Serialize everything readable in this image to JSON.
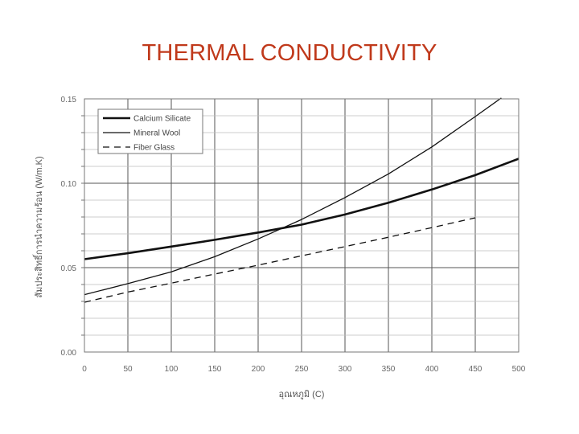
{
  "page": {
    "title": "THERMAL CONDUCTIVITY"
  },
  "chart_data": {
    "type": "line",
    "title": "THERMAL CONDUCTIVITY",
    "xlabel": "อุณหภูมิ (C)",
    "ylabel": "สัมประสิทธิ์การนำความร้อน (W/m.K)",
    "xlim": [
      0,
      500
    ],
    "ylim": [
      0.0,
      0.15
    ],
    "xticks": [
      0,
      50,
      100,
      150,
      200,
      250,
      300,
      350,
      400,
      450,
      500
    ],
    "yticks": [
      0.0,
      0.05,
      0.1,
      0.15
    ],
    "xtick_labels": [
      "0",
      "50",
      "100",
      "150",
      "200",
      "250",
      "300",
      "350",
      "400",
      "450",
      "500"
    ],
    "ytick_labels": [
      "0.00",
      "0.05",
      "0.10",
      "0.15"
    ],
    "grid": true,
    "legend_position": "top-left",
    "series": [
      {
        "name": "Calcium Silicate",
        "style": "solid-thick",
        "x": [
          0,
          50,
          100,
          150,
          200,
          250,
          300,
          350,
          400,
          450,
          500
        ],
        "y": [
          0.055,
          0.0585,
          0.0625,
          0.0665,
          0.0708,
          0.0755,
          0.0815,
          0.0885,
          0.0963,
          0.1048,
          0.1145
        ]
      },
      {
        "name": "Mineral Wool",
        "style": "solid-thin",
        "x": [
          0,
          50,
          100,
          150,
          200,
          250,
          300,
          350,
          400,
          450,
          480
        ],
        "y": [
          0.034,
          0.0405,
          0.0475,
          0.0565,
          0.067,
          0.0785,
          0.0915,
          0.1055,
          0.1215,
          0.1395,
          0.1505
        ]
      },
      {
        "name": "Fiber Glass",
        "style": "dashed",
        "x": [
          0,
          50,
          100,
          150,
          200,
          250,
          300,
          350,
          400,
          450
        ],
        "y": [
          0.0295,
          0.0355,
          0.0408,
          0.0462,
          0.0515,
          0.057,
          0.0625,
          0.068,
          0.0737,
          0.0795
        ]
      }
    ]
  }
}
